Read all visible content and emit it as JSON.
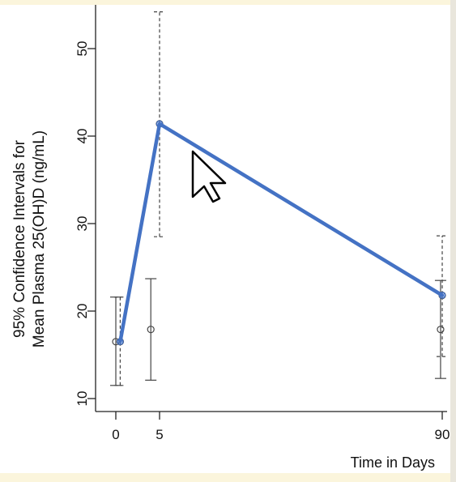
{
  "chart_data": {
    "type": "line",
    "title": "",
    "xlabel": "Time in Days",
    "ylabel_lines": [
      "95% Confidence Intervals for",
      "Mean Plasma 25(OH)D (ng/mL)"
    ],
    "x_ticks": [
      0,
      5,
      90
    ],
    "x_tick_labels": [
      "0",
      "5",
      "90"
    ],
    "y_ticks": [
      10,
      20,
      30,
      40,
      50
    ],
    "y_tick_labels": [
      "10",
      "20",
      "30",
      "40",
      "50"
    ],
    "ylim": [
      9,
      57
    ],
    "line_series": {
      "name": "",
      "color": "#4472c4",
      "points": [
        {
          "x": 0.5,
          "y": 16.5
        },
        {
          "x": 5,
          "y": 41.4
        },
        {
          "x": 90,
          "y": 21.8
        }
      ]
    },
    "dashed_error_bars": [
      {
        "x": 0.5,
        "mean": 16.5,
        "low": 11.5,
        "high": 21.6
      },
      {
        "x": 5,
        "mean": 41.4,
        "low": 28.5,
        "high": 54.2
      },
      {
        "x": 90,
        "mean": 21.8,
        "low": 14.8,
        "high": 28.6
      }
    ],
    "solid_error_bars": [
      {
        "x": 0,
        "mean": 16.5,
        "low": 11.5,
        "high": 21.6
      },
      {
        "x": 4,
        "mean": 17.9,
        "low": 12.1,
        "high": 23.7
      },
      {
        "x": 89.5,
        "mean": 17.9,
        "low": 12.3,
        "high": 23.5
      }
    ],
    "grid": false
  },
  "overlay": {
    "cursor_icon": "mouse-pointer-icon"
  }
}
